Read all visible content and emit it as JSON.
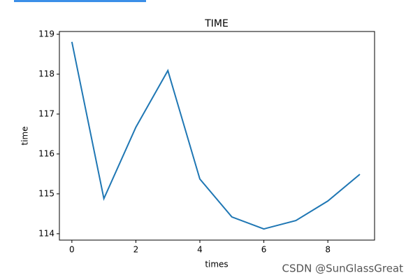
{
  "chart_data": {
    "type": "line",
    "title": "TIME",
    "x_label": "times",
    "y_label": "time",
    "x": [
      0,
      1,
      2,
      3,
      4,
      5,
      6,
      7,
      8,
      9
    ],
    "series": [
      {
        "name": "time",
        "color": "#1f77b4",
        "values": [
          118.81,
          114.88,
          116.67,
          118.09,
          115.37,
          114.42,
          114.12,
          114.33,
          114.82,
          115.49
        ]
      }
    ],
    "xlim": [
      -0.39,
      9.46
    ],
    "ylim": [
      113.84,
      119.07
    ],
    "xticks": [
      0,
      2,
      4,
      6,
      8
    ],
    "yticks": [
      114,
      115,
      116,
      117,
      118,
      119
    ],
    "grid": false,
    "legend": false
  },
  "watermark": "CSDN @SunGlassGreat"
}
